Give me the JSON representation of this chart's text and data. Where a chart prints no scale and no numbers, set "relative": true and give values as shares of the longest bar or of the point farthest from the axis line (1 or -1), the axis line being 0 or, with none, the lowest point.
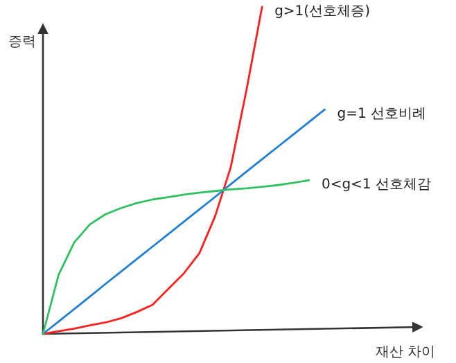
{
  "chart_data": {
    "type": "line",
    "relative": true,
    "xlabel": "재산 차이",
    "ylabel": "증력",
    "legend": false,
    "categories": [
      null,
      null,
      null,
      null,
      null,
      null,
      null,
      null,
      null,
      null,
      null,
      null,
      null,
      null,
      null,
      null,
      null,
      null,
      null,
      null,
      null,
      null,
      null,
      null
    ],
    "series": [
      {
        "name": "g>1(선호체증)",
        "color": "#ff2020",
        "values": [
          0,
          0.008,
          0.016,
          0.026,
          0.035,
          0.048,
          0.067,
          0.089,
          0.137,
          0.185,
          0.247,
          0.36,
          0.51,
          0.745,
          1,
          null,
          null,
          null,
          null,
          null,
          null,
          null,
          null,
          null
        ]
      },
      {
        "name": "g=1 선호비례",
        "color": "#1f7fd0",
        "values": [
          0,
          0.038,
          0.076,
          0.114,
          0.153,
          0.191,
          0.229,
          0.267,
          0.305,
          0.343,
          0.381,
          0.419,
          0.458,
          0.496,
          0.534,
          0.572,
          0.61,
          0.648,
          0.686,
          null,
          null,
          null,
          null,
          null
        ]
      },
      {
        "name": "0<g<1 선호체감",
        "color": "#30c060",
        "values": [
          0,
          0.181,
          0.28,
          0.335,
          0.366,
          0.385,
          0.4,
          0.411,
          0.418,
          0.426,
          0.432,
          0.437,
          0.442,
          0.445,
          0.45,
          0.455,
          0.462,
          0.47,
          null,
          null,
          null,
          null,
          null,
          null
        ]
      }
    ]
  }
}
